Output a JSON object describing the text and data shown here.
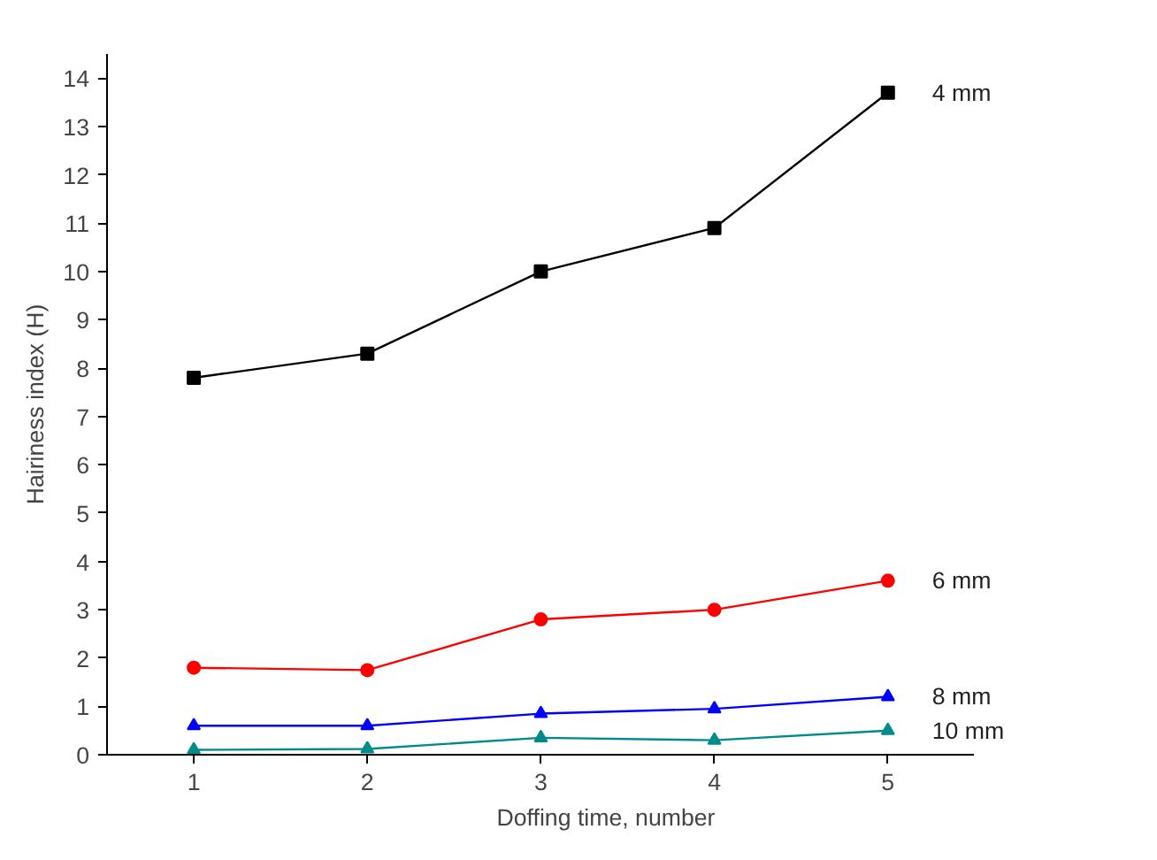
{
  "chart_data": {
    "type": "line",
    "xlabel": "Doffing time, number",
    "ylabel": "Hairiness index (H)",
    "x": [
      1,
      2,
      3,
      4,
      5
    ],
    "series": [
      {
        "name": "4 mm",
        "color": "#000000",
        "marker": "square",
        "values": [
          7.8,
          8.3,
          10.0,
          10.9,
          13.7
        ]
      },
      {
        "name": "6 mm",
        "color": "#ff0000",
        "marker": "circle",
        "values": [
          1.8,
          1.75,
          2.8,
          3.0,
          3.6
        ]
      },
      {
        "name": "8 mm",
        "color": "#0000ff",
        "marker": "triangle",
        "values": [
          0.6,
          0.6,
          0.85,
          0.95,
          1.2
        ]
      },
      {
        "name": "10 mm",
        "color": "#008b8b",
        "marker": "triangle",
        "values": [
          0.1,
          0.12,
          0.35,
          0.3,
          0.5
        ]
      }
    ],
    "xlim": [
      0.5,
      5.5
    ],
    "xticks": [
      1,
      2,
      3,
      4,
      5
    ],
    "ylim": [
      0,
      14.5
    ],
    "yticks": [
      0,
      1,
      2,
      3,
      4,
      5,
      6,
      7,
      8,
      9,
      10,
      11,
      12,
      13,
      14
    ],
    "grid": false,
    "line_style": "solid"
  }
}
